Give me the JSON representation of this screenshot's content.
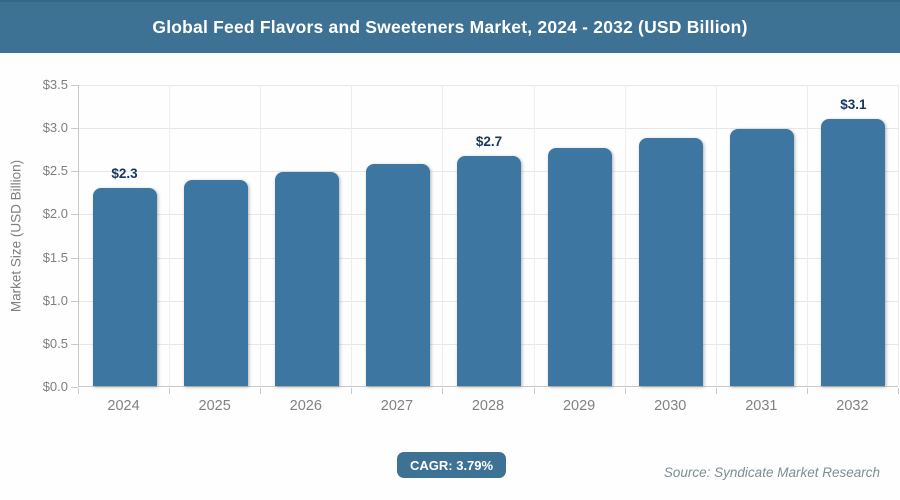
{
  "header": {
    "title": "Global Feed Flavors and Sweeteners Market, 2024 - 2032 (USD Billion)",
    "bg_color": "#3e7294",
    "text_color": "#ffffff"
  },
  "chart_data": {
    "type": "bar",
    "title": "Global Feed Flavors and Sweeteners Market, 2024 - 2032 (USD Billion)",
    "categories": [
      "2024",
      "2025",
      "2026",
      "2027",
      "2028",
      "2029",
      "2030",
      "2031",
      "2032"
    ],
    "values": [
      2.3,
      2.39,
      2.48,
      2.57,
      2.66,
      2.76,
      2.87,
      2.98,
      3.1
    ],
    "data_labels": [
      "$2.3",
      null,
      null,
      null,
      "$2.7",
      null,
      null,
      null,
      "$3.1"
    ],
    "xlabel": "",
    "ylabel": "Market Size (USD Billion)",
    "ylim": [
      0,
      3.5
    ],
    "ytick_step": 0.5,
    "ytick_labels": [
      "$0.0",
      "$0.5",
      "$1.0",
      "$1.5",
      "$2.0",
      "$2.5",
      "$3.0",
      "$3.5"
    ],
    "grid": "both",
    "legend": "none",
    "bar_color": "#3d76a0",
    "data_label_color": "#17375e",
    "axis_text_color": "#7f7f7f"
  },
  "footer": {
    "cagr_label": "CAGR: 3.79%",
    "source": "Source: Syndicate Market Research"
  }
}
